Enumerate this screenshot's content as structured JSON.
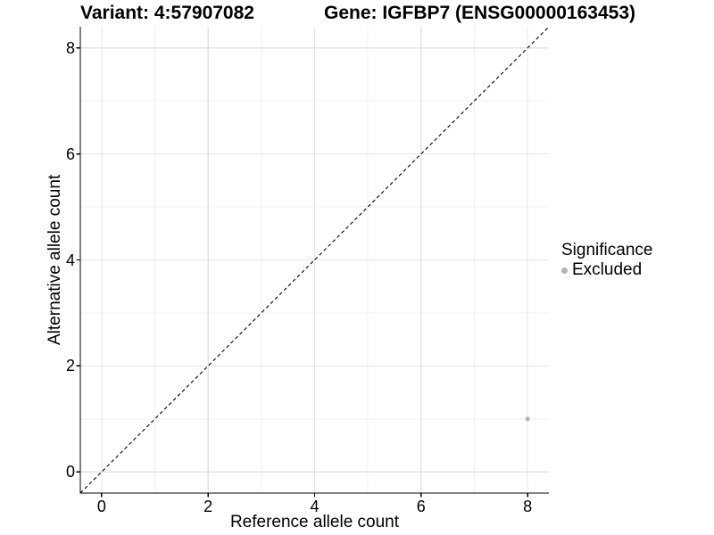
{
  "chart_data": {
    "type": "scatter",
    "title_variant": "Variant: 4:57907082",
    "title_gene": "Gene: IGFBP7 (ENSG00000163453)",
    "xlabel": "Reference allele count",
    "ylabel": "Alternative allele count",
    "xlim": [
      -0.4,
      8.4
    ],
    "ylim": [
      -0.4,
      8.4
    ],
    "x_ticks": [
      0,
      2,
      4,
      6,
      8
    ],
    "y_ticks": [
      0,
      2,
      4,
      6,
      8
    ],
    "x_minor": [
      1,
      3,
      5,
      7
    ],
    "y_minor": [
      1,
      3,
      5,
      7
    ],
    "grid": "major+minor",
    "identity_line": {
      "style": "dashed",
      "color": "#000000",
      "from": -0.4,
      "to": 8.4
    },
    "series": [
      {
        "name": "Excluded",
        "color": "#b4b4b4",
        "points": [
          {
            "x": 8,
            "y": 1
          }
        ]
      }
    ],
    "legend": {
      "title": "Significance",
      "position": "right",
      "items": [
        {
          "label": "Excluded",
          "color": "#b4b4b4",
          "marker": "circle"
        }
      ]
    },
    "style": {
      "grid_major_color": "#e4e4e4",
      "grid_minor_color": "#f1f1f1",
      "axis_color": "#000000",
      "text_color": "#000000",
      "background": "#ffffff"
    }
  }
}
